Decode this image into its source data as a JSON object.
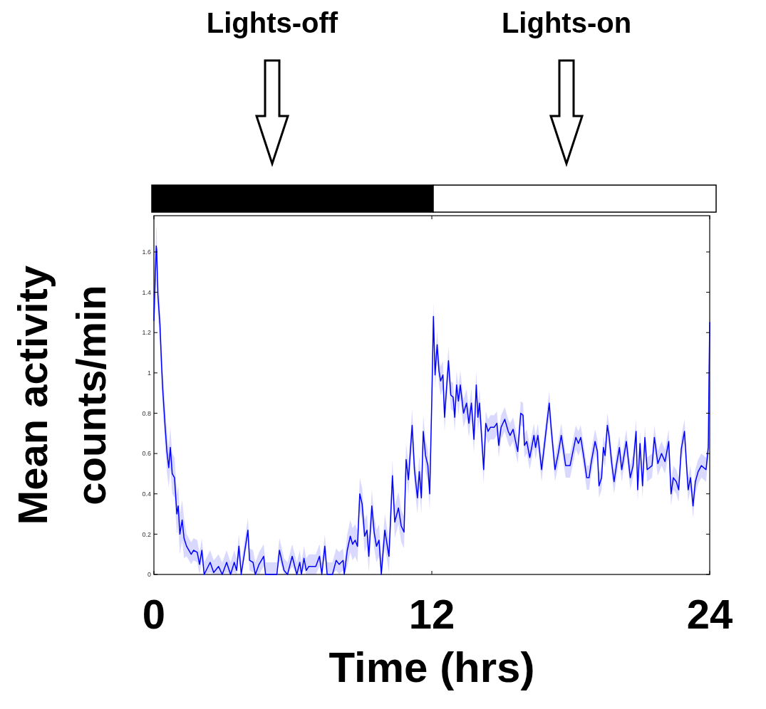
{
  "chart_data": {
    "type": "line",
    "xlabel": "Time (hrs)",
    "ylabel": "Mean activity\ncounts/min",
    "xlim": [
      0,
      24
    ],
    "xticks": [
      0,
      12,
      24
    ],
    "ylim": [
      0,
      1.78
    ],
    "yticks": [
      0,
      0.2,
      0.4,
      0.6,
      0.8,
      1,
      1.2,
      1.4,
      1.6
    ],
    "annotations": [
      "Lights-off",
      "Lights-on"
    ],
    "x": [
      0,
      0.1,
      0.12,
      0.17,
      0.26,
      0.33,
      0.38,
      0.48,
      0.56,
      0.64,
      0.71,
      0.79,
      0.89,
      0.99,
      1.05,
      1.12,
      1.22,
      1.3,
      1.41,
      1.61,
      1.71,
      1.87,
      1.97,
      2.07,
      2.17,
      2.43,
      2.58,
      2.79,
      2.95,
      3.14,
      3.31,
      3.47,
      3.57,
      3.67,
      3.77,
      4.06,
      4.13,
      4.28,
      4.38,
      4.54,
      4.74,
      4.82,
      5.31,
      5.42,
      5.62,
      5.77,
      5.97,
      6.17,
      6.3,
      6.37,
      6.48,
      6.58,
      6.69,
      6.99,
      7.15,
      7.25,
      7.38,
      7.48,
      7.71,
      7.87,
      8.0,
      8.17,
      8.22,
      8.35,
      8.48,
      8.58,
      8.69,
      8.79,
      8.89,
      8.99,
      9.1,
      9.2,
      9.28,
      9.41,
      9.51,
      9.61,
      9.72,
      9.82,
      9.97,
      10.15,
      10.3,
      10.4,
      10.56,
      10.68,
      10.8,
      10.89,
      10.99,
      11.15,
      11.25,
      11.38,
      11.46,
      11.55,
      11.63,
      11.73,
      11.83,
      11.91,
      12.0,
      12.07,
      12.14,
      12.23,
      12.31,
      12.38,
      12.48,
      12.55,
      12.72,
      12.82,
      12.92,
      12.99,
      13.07,
      13.15,
      13.23,
      13.37,
      13.5,
      13.6,
      13.71,
      13.82,
      13.92,
      13.99,
      14.06,
      14.18,
      14.24,
      14.33,
      14.43,
      14.53,
      14.69,
      14.81,
      14.89,
      14.99,
      15.15,
      15.3,
      15.38,
      15.51,
      15.71,
      15.84,
      15.94,
      16.0,
      16.1,
      16.23,
      16.41,
      16.48,
      16.58,
      16.74,
      16.91,
      17.07,
      17.15,
      17.32,
      17.46,
      17.59,
      17.78,
      17.97,
      18.22,
      18.33,
      18.43,
      18.58,
      18.69,
      18.79,
      18.89,
      19.05,
      19.15,
      19.22,
      19.33,
      19.41,
      19.48,
      19.58,
      19.66,
      19.77,
      19.87,
      19.97,
      20.1,
      20.2,
      20.4,
      20.57,
      20.69,
      20.82,
      20.89,
      20.99,
      21.1,
      21.2,
      21.3,
      21.51,
      21.61,
      21.76,
      21.92,
      22.07,
      22.23,
      22.33,
      22.43,
      22.56,
      22.66,
      22.77,
      22.91,
      22.99,
      23.07,
      23.17,
      23.28,
      23.38,
      23.5,
      23.64,
      23.84,
      23.94,
      23.97,
      24.0
    ],
    "series": [
      {
        "color": "#0000ff",
        "values": [
          1.26,
          1.63,
          1.61,
          1.39,
          1.24,
          1.04,
          0.92,
          0.74,
          0.61,
          0.53,
          0.63,
          0.5,
          0.48,
          0.3,
          0.34,
          0.2,
          0.27,
          0.18,
          0.14,
          0.1,
          0.12,
          0.11,
          0.05,
          0.12,
          0,
          0.06,
          0.01,
          0.04,
          0,
          0.06,
          0,
          0.06,
          0.02,
          0.14,
          0,
          0.22,
          0.07,
          0.06,
          0,
          0.05,
          0.09,
          0,
          0,
          0.12,
          0.02,
          0,
          0.09,
          0,
          0.06,
          0,
          0.08,
          0.02,
          0.04,
          0.04,
          0.09,
          0,
          0.14,
          0,
          0,
          0.07,
          0.05,
          0.07,
          0,
          0.12,
          0.19,
          0.15,
          0.17,
          0.14,
          0.4,
          0.35,
          0.19,
          0.22,
          0.09,
          0.34,
          0.21,
          0.14,
          0.17,
          0,
          0.22,
          0.09,
          0.49,
          0.26,
          0.33,
          0.24,
          0.21,
          0.57,
          0.47,
          0.74,
          0.52,
          0.38,
          0.51,
          0.38,
          0.71,
          0.59,
          0.54,
          0.4,
          0.87,
          1.28,
          0.99,
          1.14,
          1.01,
          0.96,
          0.99,
          0.78,
          1.06,
          0.89,
          0.88,
          0.78,
          0.94,
          0.86,
          0.94,
          0.8,
          0.85,
          0.75,
          0.85,
          0.67,
          0.94,
          0.78,
          0.85,
          0.63,
          0.52,
          0.75,
          0.71,
          0.73,
          0.73,
          0.75,
          0.64,
          0.73,
          0.77,
          0.71,
          0.69,
          0.72,
          0.61,
          0.8,
          0.79,
          0.64,
          0.66,
          0.58,
          0.69,
          0.63,
          0.69,
          0.52,
          0.69,
          0.85,
          0.73,
          0.52,
          0.6,
          0.69,
          0.54,
          0.54,
          0.68,
          0.65,
          0.68,
          0.57,
          0.48,
          0.48,
          0.56,
          0.66,
          0.61,
          0.44,
          0.48,
          0.63,
          0.59,
          0.74,
          0.68,
          0.55,
          0.46,
          0.54,
          0.63,
          0.52,
          0.66,
          0.48,
          0.54,
          0.71,
          0.42,
          0.65,
          0.44,
          0.68,
          0.52,
          0.54,
          0.68,
          0.55,
          0.6,
          0.56,
          0.66,
          0.4,
          0.48,
          0.46,
          0.42,
          0.62,
          0.71,
          0.56,
          0.42,
          0.48,
          0.34,
          0.46,
          0.51,
          0.54,
          0.52,
          0.63,
          0.97,
          1.25
        ],
        "lower": [
          1.16,
          1.53,
          1.51,
          1.29,
          1.14,
          0.94,
          0.82,
          0.64,
          0.51,
          0.43,
          0.53,
          0.4,
          0.38,
          0.2,
          0.24,
          0.1,
          0.17,
          0.08,
          0.09,
          0.05,
          0.07,
          0.06,
          0,
          0.07,
          0,
          0.01,
          0,
          0,
          0,
          0.01,
          0,
          0.01,
          0,
          0.09,
          0,
          0.17,
          0.02,
          0.01,
          0,
          0,
          0.04,
          0,
          0,
          0.07,
          0,
          0,
          0.04,
          0,
          0.01,
          0,
          0.03,
          0,
          0,
          0,
          0.04,
          0,
          0.09,
          0,
          0,
          0.02,
          0,
          0.02,
          0,
          0.04,
          0.11,
          0.07,
          0.09,
          0.06,
          0.32,
          0.27,
          0.11,
          0.14,
          0.01,
          0.26,
          0.13,
          0.06,
          0.09,
          0,
          0.14,
          0.01,
          0.41,
          0.18,
          0.25,
          0.16,
          0.13,
          0.49,
          0.39,
          0.66,
          0.44,
          0.3,
          0.43,
          0.3,
          0.63,
          0.51,
          0.46,
          0.32,
          0.8,
          1.21,
          0.92,
          1.07,
          0.94,
          0.89,
          0.92,
          0.71,
          0.99,
          0.82,
          0.81,
          0.71,
          0.87,
          0.79,
          0.87,
          0.73,
          0.78,
          0.68,
          0.78,
          0.6,
          0.87,
          0.71,
          0.78,
          0.56,
          0.45,
          0.69,
          0.65,
          0.67,
          0.67,
          0.69,
          0.58,
          0.67,
          0.71,
          0.65,
          0.63,
          0.66,
          0.55,
          0.74,
          0.73,
          0.58,
          0.6,
          0.52,
          0.63,
          0.57,
          0.63,
          0.46,
          0.63,
          0.79,
          0.67,
          0.46,
          0.54,
          0.63,
          0.48,
          0.48,
          0.62,
          0.59,
          0.62,
          0.51,
          0.42,
          0.42,
          0.5,
          0.6,
          0.55,
          0.38,
          0.42,
          0.57,
          0.53,
          0.68,
          0.62,
          0.49,
          0.4,
          0.48,
          0.57,
          0.46,
          0.6,
          0.42,
          0.48,
          0.65,
          0.36,
          0.59,
          0.38,
          0.62,
          0.46,
          0.48,
          0.62,
          0.49,
          0.54,
          0.5,
          0.6,
          0.34,
          0.42,
          0.4,
          0.36,
          0.56,
          0.65,
          0.5,
          0.36,
          0.42,
          0.28,
          0.4,
          0.45,
          0.48,
          0.46,
          0.57,
          0.91,
          1.19
        ],
        "upper": [
          1.36,
          1.73,
          1.71,
          1.49,
          1.34,
          1.14,
          1.02,
          0.84,
          0.71,
          0.63,
          0.73,
          0.6,
          0.58,
          0.4,
          0.44,
          0.3,
          0.37,
          0.28,
          0.2,
          0.16,
          0.18,
          0.17,
          0.11,
          0.18,
          0.06,
          0.12,
          0.07,
          0.1,
          0.06,
          0.12,
          0.06,
          0.12,
          0.08,
          0.2,
          0.06,
          0.28,
          0.13,
          0.12,
          0.06,
          0.11,
          0.15,
          0.06,
          0.06,
          0.18,
          0.08,
          0.06,
          0.15,
          0.06,
          0.12,
          0.06,
          0.14,
          0.08,
          0.1,
          0.1,
          0.15,
          0.06,
          0.2,
          0.06,
          0.06,
          0.13,
          0.11,
          0.13,
          0.06,
          0.2,
          0.27,
          0.23,
          0.25,
          0.22,
          0.48,
          0.43,
          0.27,
          0.3,
          0.17,
          0.42,
          0.29,
          0.22,
          0.25,
          0.08,
          0.3,
          0.17,
          0.57,
          0.34,
          0.41,
          0.32,
          0.29,
          0.65,
          0.55,
          0.82,
          0.6,
          0.46,
          0.59,
          0.46,
          0.79,
          0.67,
          0.62,
          0.48,
          0.94,
          1.35,
          1.06,
          1.21,
          1.08,
          1.03,
          1.06,
          0.85,
          1.13,
          0.96,
          0.95,
          0.85,
          1.01,
          0.93,
          1.01,
          0.87,
          0.92,
          0.82,
          0.92,
          0.74,
          1.01,
          0.85,
          0.92,
          0.7,
          0.59,
          0.81,
          0.77,
          0.79,
          0.79,
          0.81,
          0.7,
          0.79,
          0.83,
          0.77,
          0.75,
          0.78,
          0.67,
          0.86,
          0.85,
          0.7,
          0.72,
          0.64,
          0.75,
          0.69,
          0.75,
          0.58,
          0.75,
          0.91,
          0.79,
          0.58,
          0.66,
          0.75,
          0.6,
          0.6,
          0.74,
          0.71,
          0.74,
          0.63,
          0.54,
          0.54,
          0.62,
          0.72,
          0.67,
          0.5,
          0.54,
          0.69,
          0.65,
          0.8,
          0.74,
          0.61,
          0.52,
          0.6,
          0.69,
          0.58,
          0.72,
          0.54,
          0.6,
          0.77,
          0.48,
          0.71,
          0.5,
          0.74,
          0.58,
          0.6,
          0.74,
          0.61,
          0.66,
          0.62,
          0.72,
          0.46,
          0.54,
          0.52,
          0.48,
          0.68,
          0.77,
          0.62,
          0.48,
          0.54,
          0.4,
          0.52,
          0.57,
          0.6,
          0.58,
          0.69,
          1.03,
          1.31
        ]
      }
    ]
  }
}
